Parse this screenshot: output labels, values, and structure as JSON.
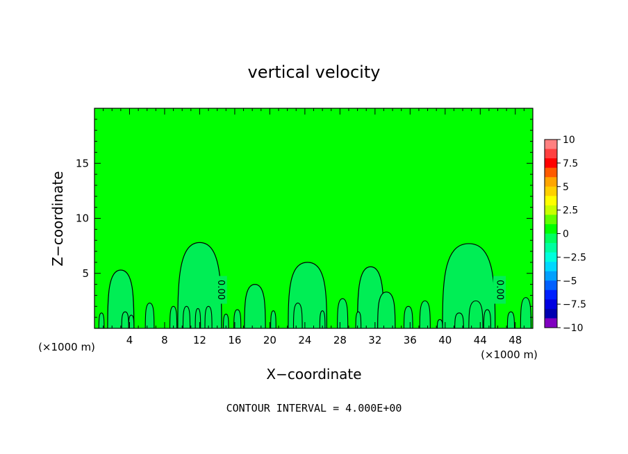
{
  "chart_data": {
    "type": "contour",
    "title": "vertical velocity",
    "xlabel": "X−coordinate",
    "ylabel": "Z−coordinate",
    "x_unit_left": "(×1000 m)",
    "x_unit_right": "(×1000 m)",
    "footer": "CONTOUR INTERVAL = 4.000E+00",
    "contour_label": "0.00",
    "xlim": [
      0,
      50
    ],
    "ylim": [
      0,
      20
    ],
    "x_ticks": [
      4,
      8,
      12,
      16,
      20,
      24,
      28,
      32,
      36,
      40,
      44,
      48
    ],
    "x_tick_labels": [
      "4",
      "8",
      "12",
      "16",
      "20",
      "24",
      "28",
      "32",
      "36",
      "40",
      "44",
      "48"
    ],
    "y_ticks": [
      5,
      10,
      15
    ],
    "y_tick_labels": [
      "5",
      "10",
      "15"
    ],
    "colorbar": {
      "levels": [
        10,
        7.5,
        5,
        2.5,
        0,
        -2.5,
        -5,
        -7.5,
        -10
      ],
      "labels": [
        "10",
        "7.5",
        "5",
        "2.5",
        "0",
        "−2.5",
        "−5",
        "−7.5",
        "−10"
      ],
      "colors": [
        "#ff8080",
        "#ff4040",
        "#ff0000",
        "#ff5a00",
        "#ffa500",
        "#ffd000",
        "#ffff00",
        "#c8ff00",
        "#60ff00",
        "#00ff00",
        "#00ff60",
        "#00ffa0",
        "#00ffdd",
        "#00d8ff",
        "#00a0ff",
        "#0060ff",
        "#0020ff",
        "#0000e0",
        "#0000b0",
        "#8000c0"
      ]
    },
    "background_color": "#00ff00",
    "negative_region_color": "#00ee55",
    "cells": [
      {
        "center": 3.0,
        "halfwidth": 1.5,
        "top": 5.3
      },
      {
        "center": 12.0,
        "halfwidth": 2.5,
        "top": 7.8
      },
      {
        "center": 18.3,
        "halfwidth": 1.2,
        "top": 4.0
      },
      {
        "center": 24.3,
        "halfwidth": 2.2,
        "top": 6.0
      },
      {
        "center": 31.5,
        "halfwidth": 1.5,
        "top": 5.6
      },
      {
        "center": 33.3,
        "halfwidth": 1.0,
        "top": 3.3
      },
      {
        "center": 42.7,
        "halfwidth": 3.0,
        "top": 7.7
      }
    ],
    "small_cells": [
      {
        "center": 0.8,
        "halfwidth": 0.3,
        "top": 1.4
      },
      {
        "center": 3.5,
        "halfwidth": 0.4,
        "top": 1.5
      },
      {
        "center": 4.2,
        "halfwidth": 0.3,
        "top": 1.2
      },
      {
        "center": 6.3,
        "halfwidth": 0.5,
        "top": 2.3
      },
      {
        "center": 9.0,
        "halfwidth": 0.4,
        "top": 2.0
      },
      {
        "center": 10.5,
        "halfwidth": 0.4,
        "top": 2.0
      },
      {
        "center": 11.8,
        "halfwidth": 0.3,
        "top": 1.8
      },
      {
        "center": 13.0,
        "halfwidth": 0.4,
        "top": 2.0
      },
      {
        "center": 15.0,
        "halfwidth": 0.3,
        "top": 1.3
      },
      {
        "center": 16.3,
        "halfwidth": 0.4,
        "top": 1.7
      },
      {
        "center": 20.4,
        "halfwidth": 0.3,
        "top": 1.6
      },
      {
        "center": 23.2,
        "halfwidth": 0.5,
        "top": 2.3
      },
      {
        "center": 26.0,
        "halfwidth": 0.3,
        "top": 1.6
      },
      {
        "center": 28.3,
        "halfwidth": 0.6,
        "top": 2.7
      },
      {
        "center": 30.1,
        "halfwidth": 0.3,
        "top": 1.5
      },
      {
        "center": 35.8,
        "halfwidth": 0.5,
        "top": 2.0
      },
      {
        "center": 37.7,
        "halfwidth": 0.6,
        "top": 2.5
      },
      {
        "center": 39.4,
        "halfwidth": 0.3,
        "top": 0.8
      },
      {
        "center": 41.6,
        "halfwidth": 0.5,
        "top": 1.4
      },
      {
        "center": 43.5,
        "halfwidth": 0.8,
        "top": 2.5
      },
      {
        "center": 44.8,
        "halfwidth": 0.4,
        "top": 1.7
      },
      {
        "center": 47.5,
        "halfwidth": 0.4,
        "top": 1.5
      },
      {
        "center": 49.2,
        "halfwidth": 0.6,
        "top": 2.8
      }
    ],
    "contour_label_positions": [
      {
        "x": 14.4,
        "y": 3.5
      },
      {
        "x": 46.2,
        "y": 3.5
      }
    ]
  }
}
